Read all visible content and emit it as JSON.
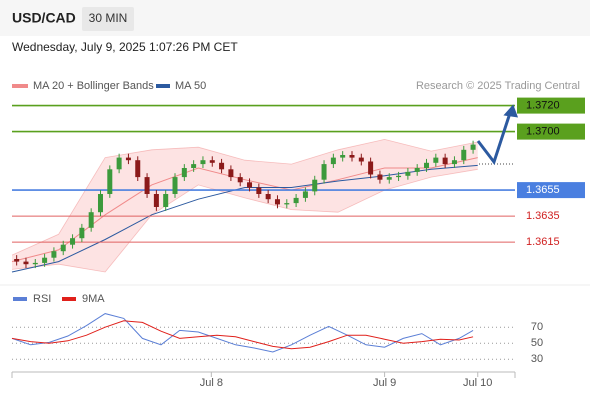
{
  "header": {
    "symbol": "USD/CAD",
    "timeframe": "30 MIN",
    "timestamp": "Wednesday, July 9, 2025 1:07:26 PM CET",
    "source": "Research © 2025 Trading Central"
  },
  "chart_data": [
    {
      "type": "candlestick",
      "xlim": [
        0,
        54
      ],
      "ylim": [
        1.3582,
        1.3732
      ],
      "up_color": "#3c9a3c",
      "down_color": "#8b1a1a",
      "open": [
        1.3602,
        1.36,
        1.3598,
        1.3599,
        1.3603,
        1.3608,
        1.3613,
        1.3618,
        1.3626,
        1.3638,
        1.3652,
        1.3671,
        1.368,
        1.3678,
        1.3665,
        1.3652,
        1.3642,
        1.3652,
        1.3665,
        1.3672,
        1.3675,
        1.3678,
        1.3676,
        1.3671,
        1.3665,
        1.3661,
        1.3657,
        1.3652,
        1.3648,
        1.3644,
        1.3645,
        1.3649,
        1.3654,
        1.3663,
        1.3675,
        1.368,
        1.3682,
        1.368,
        1.3677,
        1.3667,
        1.3663,
        1.3665,
        1.3666,
        1.3669,
        1.3672,
        1.3676,
        1.368,
        1.3675,
        1.3678,
        1.3686
      ],
      "high": [
        1.3605,
        1.3603,
        1.3602,
        1.3606,
        1.3611,
        1.3616,
        1.3621,
        1.3629,
        1.3641,
        1.3655,
        1.3674,
        1.3683,
        1.3683,
        1.3681,
        1.3668,
        1.3655,
        1.3655,
        1.3668,
        1.3675,
        1.3678,
        1.3681,
        1.3681,
        1.3679,
        1.3674,
        1.3668,
        1.3664,
        1.366,
        1.3655,
        1.3651,
        1.3648,
        1.3652,
        1.3657,
        1.3666,
        1.3678,
        1.3683,
        1.3685,
        1.3685,
        1.3683,
        1.368,
        1.367,
        1.3668,
        1.3669,
        1.3672,
        1.3675,
        1.3679,
        1.3683,
        1.3683,
        1.3681,
        1.3689,
        1.3693
      ],
      "low": [
        1.3597,
        1.3595,
        1.3595,
        1.3596,
        1.36,
        1.3605,
        1.361,
        1.3615,
        1.3623,
        1.3635,
        1.3649,
        1.3668,
        1.3675,
        1.3662,
        1.3649,
        1.3639,
        1.3639,
        1.3649,
        1.3662,
        1.3669,
        1.3672,
        1.3673,
        1.3668,
        1.3662,
        1.3658,
        1.3654,
        1.3649,
        1.3645,
        1.3641,
        1.3641,
        1.3642,
        1.3646,
        1.3651,
        1.366,
        1.3672,
        1.3677,
        1.3677,
        1.3674,
        1.3664,
        1.366,
        1.366,
        1.3662,
        1.3663,
        1.3666,
        1.3669,
        1.3673,
        1.3672,
        1.3672,
        1.3675,
        1.3683
      ],
      "close": [
        1.36,
        1.3598,
        1.3599,
        1.3603,
        1.3608,
        1.3613,
        1.3618,
        1.3626,
        1.3638,
        1.3652,
        1.3671,
        1.368,
        1.3678,
        1.3665,
        1.3652,
        1.3642,
        1.3652,
        1.3665,
        1.3672,
        1.3675,
        1.3678,
        1.3676,
        1.3671,
        1.3665,
        1.3661,
        1.3657,
        1.3652,
        1.3648,
        1.3644,
        1.3645,
        1.3649,
        1.3654,
        1.3663,
        1.3675,
        1.368,
        1.3682,
        1.368,
        1.3677,
        1.3667,
        1.3663,
        1.3665,
        1.3666,
        1.3669,
        1.3672,
        1.3676,
        1.368,
        1.3675,
        1.3678,
        1.3686,
        1.369
      ],
      "bands": {
        "name": "MA 20 + Bollinger Bands",
        "color": "#f08a8a",
        "fill": "#fde3e3",
        "x": [
          0,
          5,
          10,
          15,
          20,
          25,
          30,
          35,
          40,
          45,
          50
        ],
        "upper": [
          1.3605,
          1.3621,
          1.368,
          1.3686,
          1.3688,
          1.3678,
          1.3675,
          1.3686,
          1.3694,
          1.3685,
          1.3692
        ],
        "middle": [
          1.36,
          1.3609,
          1.3636,
          1.3659,
          1.3672,
          1.3663,
          1.3655,
          1.3663,
          1.3672,
          1.3672,
          1.368
        ],
        "lower": [
          1.3594,
          1.3598,
          1.3592,
          1.3636,
          1.3659,
          1.3649,
          1.364,
          1.3638,
          1.3655,
          1.3665,
          1.3671
        ]
      },
      "ma50": {
        "name": "MA 50",
        "color": "#2c5aa0",
        "x": [
          0,
          5,
          10,
          15,
          20,
          25,
          30,
          35,
          40,
          45,
          50
        ],
        "values": [
          1.3592,
          1.36,
          1.3617,
          1.3636,
          1.3648,
          1.3657,
          1.3657,
          1.3662,
          1.3666,
          1.3671,
          1.3674
        ]
      },
      "levels": [
        {
          "value": 1.372,
          "label": "1.3720",
          "color": "#5aa01e"
        },
        {
          "value": 1.37,
          "label": "1.3700",
          "color": "#5aa01e"
        },
        {
          "value": 1.3655,
          "label": "1.3655",
          "color": "#4a7fe0"
        },
        {
          "value": 1.3635,
          "label": "1.3635",
          "color": "#e06060"
        },
        {
          "value": 1.3615,
          "label": "1.3615",
          "color": "#e06060"
        }
      ]
    },
    {
      "type": "line",
      "xlim": [
        0,
        54
      ],
      "ylim": [
        14,
        89
      ],
      "yticks": [
        30,
        50,
        70
      ],
      "xticks": [
        {
          "value": 21.4,
          "label": "Jul 8"
        },
        {
          "value": 40,
          "label": "Jul 9"
        },
        {
          "value": 50,
          "label": "Jul 10"
        }
      ],
      "series": [
        {
          "name": "RSI",
          "color": "#5b7fd6",
          "x": [
            0,
            2,
            4,
            6,
            8,
            10,
            12,
            14,
            16,
            18,
            20,
            22,
            24,
            26,
            28,
            30,
            32,
            34,
            36,
            38,
            40,
            42,
            44,
            46,
            48,
            49.5
          ],
          "values": [
            56,
            48,
            51,
            59,
            72,
            87,
            81,
            56,
            48,
            66,
            64,
            56,
            48,
            44,
            39,
            48,
            60,
            71,
            60,
            48,
            45,
            56,
            62,
            48,
            56,
            66
          ]
        },
        {
          "name": "9MA",
          "color": "#e0201b",
          "x": [
            0,
            2,
            4,
            6,
            8,
            10,
            12,
            14,
            16,
            18,
            20,
            22,
            24,
            26,
            28,
            30,
            32,
            34,
            36,
            38,
            40,
            42,
            44,
            46,
            48,
            49.5
          ],
          "values": [
            56,
            52,
            50,
            53,
            60,
            70,
            78,
            76,
            65,
            56,
            58,
            60,
            58,
            52,
            46,
            43,
            45,
            52,
            60,
            60,
            55,
            50,
            52,
            55,
            54,
            58
          ]
        }
      ]
    }
  ]
}
